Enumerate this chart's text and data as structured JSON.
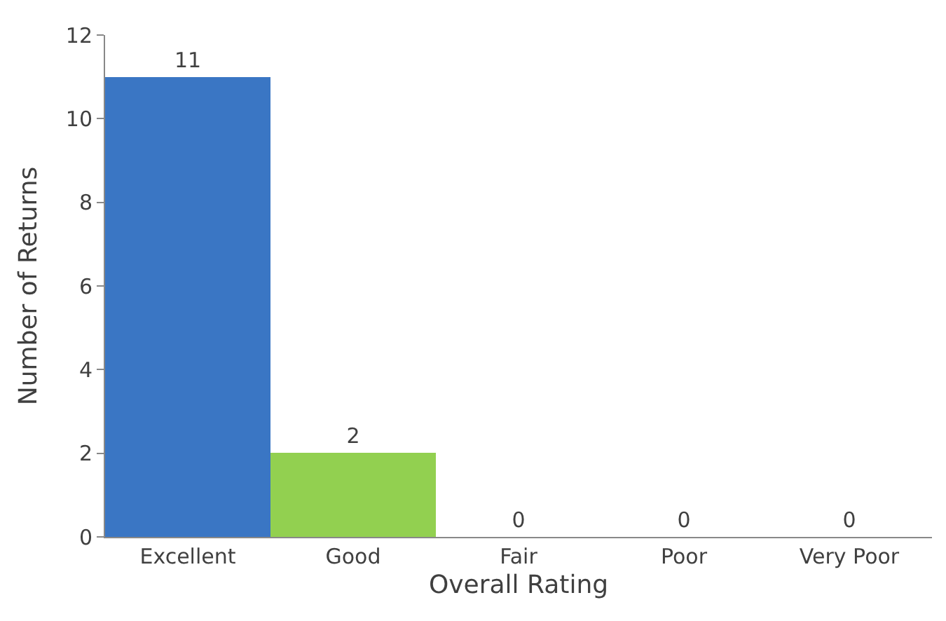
{
  "chart_data": {
    "type": "bar",
    "xlabel": "Overall Rating",
    "ylabel": "Number of Returns",
    "categories": [
      "Excellent",
      "Good",
      "Fair",
      "Poor",
      "Very Poor"
    ],
    "values": [
      11,
      2,
      0,
      0,
      0
    ],
    "colors": [
      "#3a76c4",
      "#92d050",
      "#92d050",
      "#92d050",
      "#92d050"
    ],
    "ylim": [
      0,
      12
    ],
    "yticks": [
      0,
      2,
      4,
      6,
      8,
      10,
      12
    ],
    "data_labels": true
  }
}
